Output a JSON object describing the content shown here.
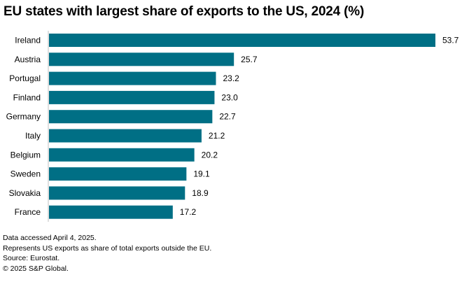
{
  "chart_data": {
    "type": "bar",
    "orientation": "horizontal",
    "title": "EU states with largest share of exports to the US, 2024  (%)",
    "categories": [
      "Ireland",
      "Austria",
      "Portugal",
      "Finland",
      "Germany",
      "Italy",
      "Belgium",
      "Sweden",
      "Slovakia",
      "France"
    ],
    "values": [
      53.7,
      25.7,
      23.2,
      23.0,
      22.7,
      21.2,
      20.2,
      19.1,
      18.9,
      17.2
    ],
    "value_labels": [
      "53.7",
      "25.7",
      "23.2",
      "23.0",
      "22.7",
      "21.2",
      "20.2",
      "19.1",
      "18.9",
      "17.2"
    ],
    "xlabel": "",
    "ylabel": "",
    "xlim": [
      0,
      53.7
    ],
    "grid": false,
    "legend": "none",
    "bar_color": "#006F85"
  },
  "footer": {
    "notes": [
      "Data accessed April 4, 2025.",
      "Represents US exports as share of total exports outside the EU.",
      "Source: Eurostat.",
      "© 2025 S&P Global."
    ]
  }
}
